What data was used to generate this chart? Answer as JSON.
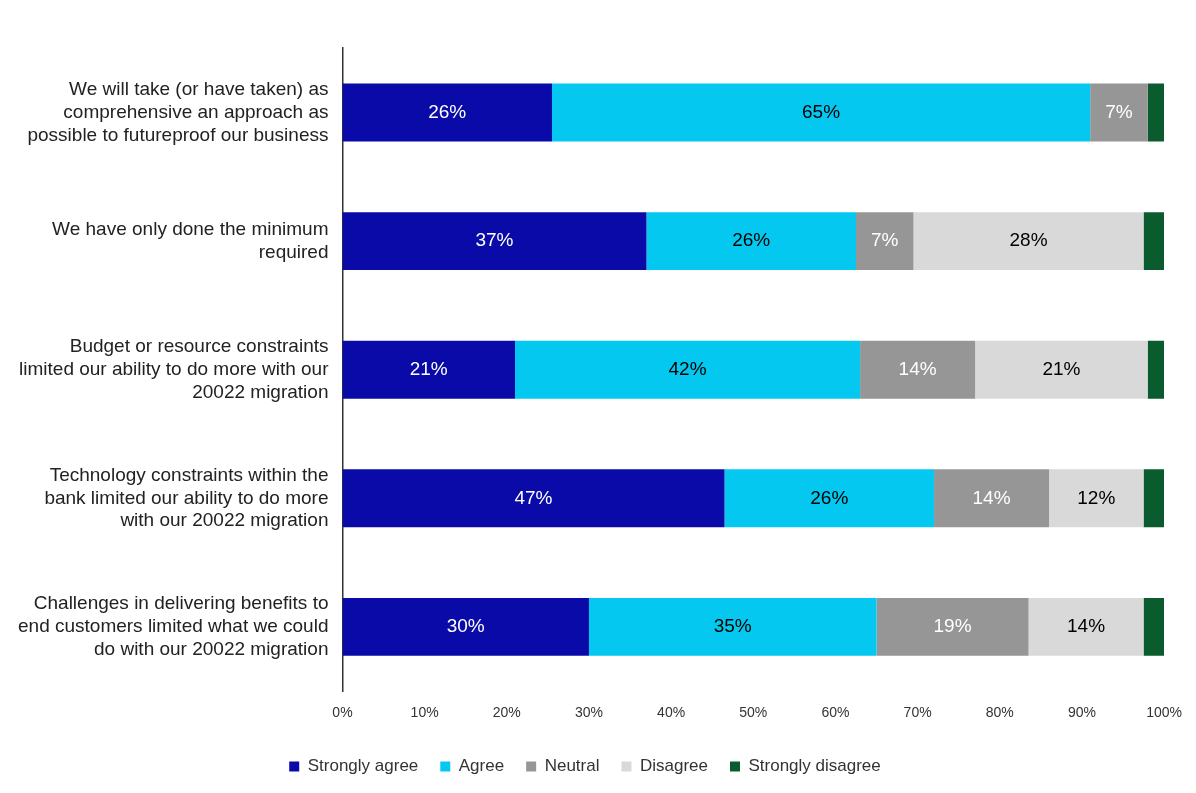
{
  "chart_data": {
    "type": "bar",
    "orientation": "horizontal",
    "stacked": true,
    "legend": "bottom",
    "grid": false,
    "categories": [
      "We will take (or have taken) as comprehensive an approach as possible to futureproof our business",
      "We have only done the minimum required",
      "Budget or resource constraints limited our ability to do more with our 20022 migration",
      "Technology constraints within the bank limited our ability to do more with our 20022 migration",
      "Challenges in delivering benefits to end customers limited what we could do with our 20022 migration"
    ],
    "xlim": [
      0,
      100
    ],
    "xticks": [
      {
        "value": 0,
        "label": "0%"
      },
      {
        "value": 10,
        "label": "10%"
      },
      {
        "value": 20,
        "label": "20%"
      },
      {
        "value": 30,
        "label": "30%"
      },
      {
        "value": 40,
        "label": "40%"
      },
      {
        "value": 50,
        "label": "50%"
      },
      {
        "value": 60,
        "label": "60%"
      },
      {
        "value": 70,
        "label": "70%"
      },
      {
        "value": 80,
        "label": "80%"
      },
      {
        "value": 90,
        "label": "90%"
      },
      {
        "value": 100,
        "label": "100%"
      }
    ],
    "series": [
      {
        "name": "Strongly agree",
        "color": "#0a0aa8",
        "values": [
          25.5,
          37,
          21,
          46.5,
          30
        ],
        "value_labels": [
          "26%",
          "37%",
          "21%",
          "47%",
          "30%"
        ]
      },
      {
        "name": "Agree",
        "color": "#05c8f0",
        "values": [
          65.5,
          25.5,
          42,
          25.5,
          35
        ],
        "value_labels": [
          "65%",
          "26%",
          "42%",
          "26%",
          "35%"
        ]
      },
      {
        "name": "Neutral",
        "color": "#969696",
        "values": [
          7,
          7,
          14,
          14,
          18.5
        ],
        "value_labels": [
          "7%",
          "7%",
          "14%",
          "14%",
          "19%"
        ]
      },
      {
        "name": "Disagree",
        "color": "#d9d9d9",
        "values": [
          0,
          28,
          21,
          11.5,
          14
        ],
        "value_labels": [
          null,
          "28%",
          "21%",
          "12%",
          "14%"
        ]
      },
      {
        "name": "Strongly disagree",
        "color": "#0a5c2e",
        "values": [
          2,
          2.5,
          2,
          2.5,
          2.5
        ],
        "value_labels": [
          null,
          null,
          null,
          null,
          null
        ]
      }
    ]
  }
}
